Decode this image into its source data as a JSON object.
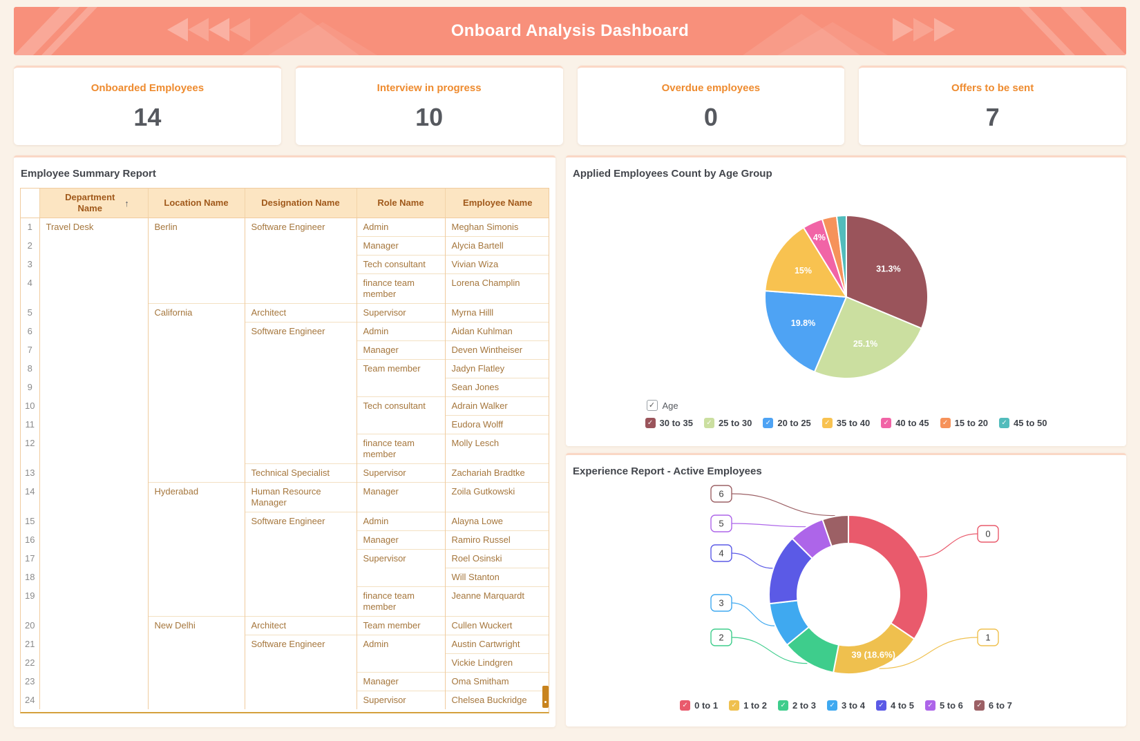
{
  "header": {
    "title": "Onboard Analysis Dashboard"
  },
  "kpis": [
    {
      "label": "Onboarded Employees",
      "value": "14"
    },
    {
      "label": "Interview in progress",
      "value": "10"
    },
    {
      "label": "Overdue employees",
      "value": "0"
    },
    {
      "label": "Offers to be sent",
      "value": "7"
    }
  ],
  "icons": {
    "check": "✓",
    "sort_ascending": "↑"
  },
  "table": {
    "title": "Employee Summary Report",
    "columns": [
      "Department Name",
      "Location Name",
      "Designation Name",
      "Role Name",
      "Employee Name"
    ],
    "sort_column": "Department Name",
    "sort_icon": "↑",
    "rows": [
      {
        "n": 1,
        "cells": [
          {
            "col": "dept",
            "text": "Travel Desk",
            "span": 24
          },
          {
            "col": "loc",
            "text": "Berlin",
            "span": 4
          },
          {
            "col": "desig",
            "text": "Software Engineer",
            "span": 4
          },
          {
            "col": "role",
            "text": "Admin",
            "span": 1
          },
          {
            "col": "emp",
            "text": "Meghan Simonis",
            "span": 1
          }
        ]
      },
      {
        "n": 2,
        "cells": [
          {
            "col": "role",
            "text": "Manager",
            "span": 1
          },
          {
            "col": "emp",
            "text": "Alycia Bartell",
            "span": 1
          }
        ]
      },
      {
        "n": 3,
        "cells": [
          {
            "col": "role",
            "text": "Tech consultant",
            "span": 1
          },
          {
            "col": "emp",
            "text": "Vivian Wiza",
            "span": 1
          }
        ]
      },
      {
        "n": 4,
        "cells": [
          {
            "col": "role",
            "text": "finance team member",
            "span": 1
          },
          {
            "col": "emp",
            "text": "Lorena Champlin",
            "span": 1
          }
        ]
      },
      {
        "n": 5,
        "cells": [
          {
            "col": "loc",
            "text": "California",
            "span": 9
          },
          {
            "col": "desig",
            "text": "Architect",
            "span": 1
          },
          {
            "col": "role",
            "text": "Supervisor",
            "span": 1
          },
          {
            "col": "emp",
            "text": "Myrna Hilll",
            "span": 1
          }
        ]
      },
      {
        "n": 6,
        "cells": [
          {
            "col": "desig",
            "text": "Software Engineer",
            "span": 7
          },
          {
            "col": "role",
            "text": "Admin",
            "span": 1
          },
          {
            "col": "emp",
            "text": "Aidan Kuhlman",
            "span": 1
          }
        ]
      },
      {
        "n": 7,
        "cells": [
          {
            "col": "role",
            "text": "Manager",
            "span": 1
          },
          {
            "col": "emp",
            "text": "Deven Wintheiser",
            "span": 1
          }
        ]
      },
      {
        "n": 8,
        "cells": [
          {
            "col": "role",
            "text": "Team member",
            "span": 2
          },
          {
            "col": "emp",
            "text": "Jadyn Flatley",
            "span": 1
          }
        ]
      },
      {
        "n": 9,
        "cells": [
          {
            "col": "emp",
            "text": "Sean Jones",
            "span": 1
          }
        ]
      },
      {
        "n": 10,
        "cells": [
          {
            "col": "role",
            "text": "Tech consultant",
            "span": 2
          },
          {
            "col": "emp",
            "text": "Adrain Walker",
            "span": 1
          }
        ]
      },
      {
        "n": 11,
        "cells": [
          {
            "col": "emp",
            "text": "Eudora Wolff",
            "span": 1
          }
        ]
      },
      {
        "n": 12,
        "cells": [
          {
            "col": "role",
            "text": "finance team member",
            "span": 1
          },
          {
            "col": "emp",
            "text": "Molly Lesch",
            "span": 1
          }
        ]
      },
      {
        "n": 13,
        "cells": [
          {
            "col": "desig",
            "text": "Technical Specialist",
            "span": 1
          },
          {
            "col": "role",
            "text": "Supervisor",
            "span": 1
          },
          {
            "col": "emp",
            "text": "Zachariah Bradtke",
            "span": 1
          }
        ]
      },
      {
        "n": 14,
        "cells": [
          {
            "col": "loc",
            "text": "Hyderabad",
            "span": 6
          },
          {
            "col": "desig",
            "text": "Human Resource Manager",
            "span": 1
          },
          {
            "col": "role",
            "text": "Manager",
            "span": 1
          },
          {
            "col": "emp",
            "text": "Zoila Gutkowski",
            "span": 1
          }
        ]
      },
      {
        "n": 15,
        "cells": [
          {
            "col": "desig",
            "text": "Software Engineer",
            "span": 5
          },
          {
            "col": "role",
            "text": "Admin",
            "span": 1
          },
          {
            "col": "emp",
            "text": "Alayna Lowe",
            "span": 1
          }
        ]
      },
      {
        "n": 16,
        "cells": [
          {
            "col": "role",
            "text": "Manager",
            "span": 1
          },
          {
            "col": "emp",
            "text": "Ramiro Russel",
            "span": 1
          }
        ]
      },
      {
        "n": 17,
        "cells": [
          {
            "col": "role",
            "text": "Supervisor",
            "span": 2
          },
          {
            "col": "emp",
            "text": "Roel Osinski",
            "span": 1
          }
        ]
      },
      {
        "n": 18,
        "cells": [
          {
            "col": "emp",
            "text": "Will Stanton",
            "span": 1
          }
        ]
      },
      {
        "n": 19,
        "cells": [
          {
            "col": "role",
            "text": "finance team member",
            "span": 1
          },
          {
            "col": "emp",
            "text": "Jeanne Marquardt",
            "span": 1
          }
        ]
      },
      {
        "n": 20,
        "cells": [
          {
            "col": "loc",
            "text": "New Delhi",
            "span": 5
          },
          {
            "col": "desig",
            "text": "Architect",
            "span": 1
          },
          {
            "col": "role",
            "text": "Team member",
            "span": 1
          },
          {
            "col": "emp",
            "text": "Cullen Wuckert",
            "span": 1
          }
        ]
      },
      {
        "n": 21,
        "cells": [
          {
            "col": "desig",
            "text": "Software Engineer",
            "span": 4
          },
          {
            "col": "role",
            "text": "Admin",
            "span": 2
          },
          {
            "col": "emp",
            "text": "Austin Cartwright",
            "span": 1
          }
        ]
      },
      {
        "n": 22,
        "cells": [
          {
            "col": "emp",
            "text": "Vickie Lindgren",
            "span": 1
          }
        ]
      },
      {
        "n": 23,
        "cells": [
          {
            "col": "role",
            "text": "Manager",
            "span": 1
          },
          {
            "col": "emp",
            "text": "Oma Smitham",
            "span": 1
          }
        ]
      },
      {
        "n": 24,
        "cells": [
          {
            "col": "role",
            "text": "Supervisor",
            "span": 1
          },
          {
            "col": "emp",
            "text": "Chelsea Buckridge",
            "span": 1
          }
        ]
      }
    ]
  },
  "chart_data": [
    {
      "id": "age-pie",
      "type": "pie",
      "title": "Applied Employees Count by Age Group",
      "legend_group": "Age",
      "legend_position": "bottom",
      "categories": [
        "30 to 35",
        "25 to 30",
        "20 to 25",
        "35 to 40",
        "40 to 45",
        "15 to 20",
        "45 to 50"
      ],
      "values": [
        31.3,
        25.1,
        19.8,
        15,
        4,
        2.9,
        1.9
      ],
      "unit": "percent",
      "labels": [
        "31.3%",
        "25.1%",
        "19.8%",
        "15%",
        "4%",
        "",
        ""
      ],
      "colors": [
        "#9A545B",
        "#CBDFA0",
        "#4EA3F4",
        "#F8C250",
        "#F164A6",
        "#F6925A",
        "#52BCBC"
      ]
    },
    {
      "id": "experience-donut",
      "type": "donut",
      "title": "Experience Report - Active Employees",
      "legend_position": "bottom",
      "categories": [
        "0 to 1",
        "1 to 2",
        "2 to 3",
        "3 to 4",
        "4 to 5",
        "5 to 6",
        "6 to 7"
      ],
      "values": [
        34.4,
        18.6,
        11,
        9.1,
        14.3,
        7.2,
        5.3
      ],
      "unit": "percent",
      "slice_labels": [
        "",
        "39 (18.6%)",
        "",
        "",
        "",
        "",
        ""
      ],
      "callout_labels": [
        "0",
        "1",
        "2",
        "3",
        "4",
        "5",
        "6"
      ],
      "colors": [
        "#E95A6C",
        "#EFC04E",
        "#3ECD8C",
        "#3FA9F0",
        "#5B5AE6",
        "#AD65E9",
        "#9C6065"
      ]
    }
  ]
}
